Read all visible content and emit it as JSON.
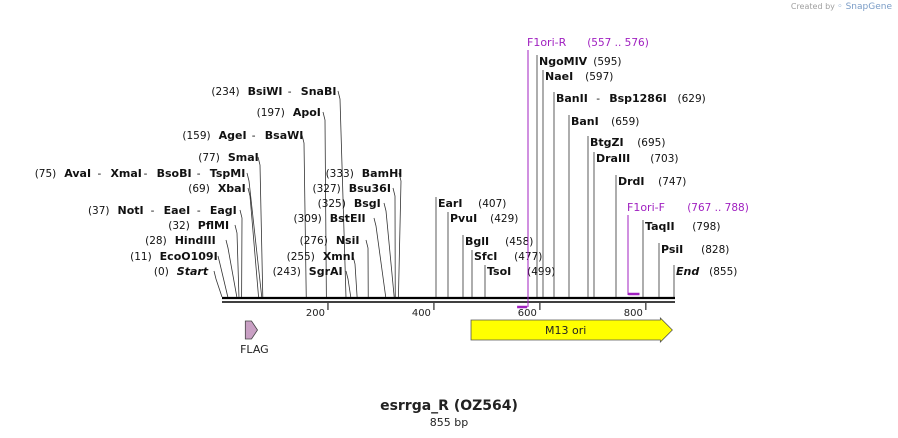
{
  "credit": {
    "prefix": "Created by",
    "brand": "SnapGene"
  },
  "title": "esrrga_R (OZ564)",
  "subtitle": "855 bp",
  "sequence_length": 855,
  "axis": {
    "ticks": [
      {
        "value": 200,
        "label": "200"
      },
      {
        "value": 400,
        "label": "400"
      },
      {
        "value": 600,
        "label": "600"
      },
      {
        "value": 800,
        "label": "800"
      }
    ]
  },
  "left_sites": [
    {
      "pos": "(0)",
      "names": [
        "Start"
      ],
      "bp": 0,
      "italic": true
    },
    {
      "pos": "(11)",
      "names": [
        "EcoO109I"
      ],
      "bp": 11
    },
    {
      "pos": "(28)",
      "names": [
        "HindIII"
      ],
      "bp": 28
    },
    {
      "pos": "(32)",
      "names": [
        "PflMI"
      ],
      "bp": 32
    },
    {
      "pos": "(37)",
      "names": [
        "NotI",
        "EaeI",
        "EagI"
      ],
      "bp": 37
    },
    {
      "pos": "(69)",
      "names": [
        "XbaI"
      ],
      "bp": 69
    },
    {
      "pos": "(75)",
      "names": [
        "AvaI",
        "XmaI",
        "BsoBI",
        "TspMI"
      ],
      "bp": 75
    },
    {
      "pos": "(77)",
      "names": [
        "SmaI"
      ],
      "bp": 77
    },
    {
      "pos": "(159)",
      "names": [
        "AgeI",
        "BsaWI"
      ],
      "bp": 159
    },
    {
      "pos": "(197)",
      "names": [
        "ApoI"
      ],
      "bp": 197
    },
    {
      "pos": "(234)",
      "names": [
        "BsiWI",
        "SnaBI"
      ],
      "bp": 234
    },
    {
      "pos": "(243)",
      "names": [
        "SgrAI"
      ],
      "bp": 243
    },
    {
      "pos": "(255)",
      "names": [
        "XmnI"
      ],
      "bp": 255
    },
    {
      "pos": "(276)",
      "names": [
        "NsiI"
      ],
      "bp": 276
    },
    {
      "pos": "(309)",
      "names": [
        "BstEII"
      ],
      "bp": 309
    },
    {
      "pos": "(325)",
      "names": [
        "BsgI"
      ],
      "bp": 325
    },
    {
      "pos": "(327)",
      "names": [
        "Bsu36I"
      ],
      "bp": 327
    },
    {
      "pos": "(333)",
      "names": [
        "BamHI"
      ],
      "bp": 333
    }
  ],
  "right_sites": [
    {
      "pos": "(407)",
      "names": [
        "EarI"
      ],
      "bp": 407
    },
    {
      "pos": "(429)",
      "names": [
        "PvuI"
      ],
      "bp": 429
    },
    {
      "pos": "(458)",
      "names": [
        "BglI"
      ],
      "bp": 458
    },
    {
      "pos": "(477)",
      "names": [
        "SfcI"
      ],
      "bp": 477
    },
    {
      "pos": "(499)",
      "names": [
        "TsoI"
      ],
      "bp": 499
    },
    {
      "pos": "(595)",
      "names": [
        "NgoMIV"
      ],
      "bp": 595
    },
    {
      "pos": "(597)",
      "names": [
        "NaeI"
      ],
      "bp": 597
    },
    {
      "pos": "(629)",
      "names": [
        "BanII",
        "Bsp1286I"
      ],
      "bp": 629
    },
    {
      "pos": "(659)",
      "names": [
        "BanI"
      ],
      "bp": 659
    },
    {
      "pos": "(695)",
      "names": [
        "BtgZI"
      ],
      "bp": 695
    },
    {
      "pos": "(703)",
      "names": [
        "DraIII"
      ],
      "bp": 703
    },
    {
      "pos": "(747)",
      "names": [
        "DrdI"
      ],
      "bp": 747
    },
    {
      "pos": "(798)",
      "names": [
        "TaqII"
      ],
      "bp": 798
    },
    {
      "pos": "(828)",
      "names": [
        "PsiI"
      ],
      "bp": 828
    },
    {
      "pos": "(855)",
      "names": [
        "End"
      ],
      "bp": 855,
      "italic": true
    }
  ],
  "primers": [
    {
      "name": "F1ori-R",
      "range": "(557 .. 576)",
      "start": 557,
      "end": 576,
      "direction": "reverse"
    },
    {
      "name": "F1ori-F",
      "range": "(767 .. 788)",
      "start": 767,
      "end": 788,
      "direction": "forward"
    }
  ],
  "features": [
    {
      "name": "FLAG",
      "start": 44,
      "end": 67,
      "color": "#c9a0c4",
      "label_position": "below"
    },
    {
      "name": "M13 ori",
      "start": 470,
      "end": 850,
      "color": "#ffff00",
      "label_position": "inside"
    }
  ],
  "colors": {
    "primer": "#a020c0",
    "line": "#000000"
  }
}
